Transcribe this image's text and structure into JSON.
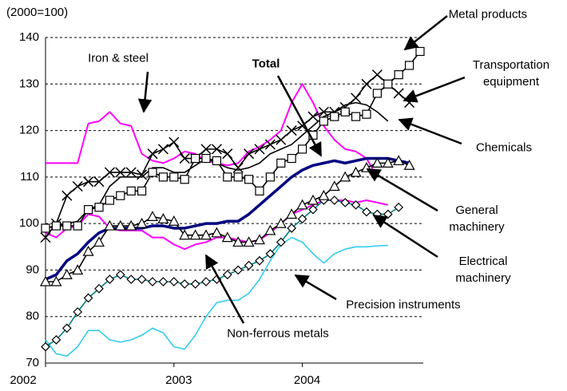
{
  "chart_data": {
    "type": "line",
    "y_label": "(2000=100)",
    "categories": [
      "2002",
      null,
      null,
      null,
      null,
      null,
      null,
      null,
      null,
      null,
      null,
      null,
      "2003",
      null,
      null,
      null,
      null,
      null,
      null,
      null,
      null,
      null,
      null,
      null,
      "2004",
      null,
      null,
      null,
      null,
      null,
      null,
      null,
      null,
      null,
      null,
      null
    ],
    "ylim": [
      70,
      140
    ],
    "yticks": [
      70,
      80,
      90,
      100,
      110,
      120,
      130,
      140
    ],
    "grid": true,
    "series": [
      {
        "name": "Metal products",
        "color": "#000000",
        "marker": "square",
        "values": [
          99,
          99.5,
          99.5,
          99.5,
          103,
          103.5,
          105,
          106,
          107,
          107,
          111,
          110,
          110,
          109.5,
          114,
          114,
          113.5,
          110,
          110,
          109.5,
          107,
          110,
          113,
          114,
          116,
          119,
          122,
          123,
          124,
          123,
          123.5,
          128,
          130,
          132,
          134,
          137
        ]
      },
      {
        "name": "Transportation equipment",
        "color": "#000000",
        "marker": "x",
        "values": [
          97,
          100,
          106,
          108,
          109,
          109,
          111,
          111,
          111,
          110.5,
          115,
          116,
          117.5,
          114,
          114,
          116,
          116,
          115,
          112,
          115,
          116,
          117,
          118,
          120,
          121,
          123,
          124,
          124,
          125,
          127,
          130,
          132,
          130,
          128,
          126,
          null
        ]
      },
      {
        "name": "Chemicals",
        "color": "#000000",
        "marker": "none",
        "values": [
          99,
          99.5,
          100,
          100.5,
          103,
          104,
          108,
          110,
          110,
          110,
          112,
          112,
          111,
          111,
          112.5,
          114,
          113,
          112,
          111.5,
          112,
          113,
          115,
          116,
          117,
          119,
          121,
          123,
          124,
          125.5,
          126,
          125.5,
          124,
          122,
          null,
          null,
          null
        ]
      },
      {
        "name": "Total",
        "color": "#000080",
        "marker": "none",
        "values": [
          88,
          89,
          92,
          93.5,
          96,
          98,
          99,
          99,
          99,
          99,
          99.5,
          99.5,
          99,
          99,
          99.5,
          100,
          100,
          100.5,
          100.5,
          102,
          104,
          106,
          108,
          110,
          111.5,
          112.5,
          113,
          113.5,
          113,
          113.5,
          114,
          114,
          114,
          113.5,
          113,
          null
        ]
      },
      {
        "name": "General machinery",
        "color": "#000000",
        "marker": "triangle",
        "values": [
          87.5,
          87.5,
          89,
          90,
          94,
          96,
          99.5,
          99.5,
          99.5,
          100,
          101.5,
          101,
          100.5,
          97.5,
          97.5,
          97.5,
          98,
          97,
          96,
          96,
          96.5,
          98.5,
          100,
          102,
          104,
          105,
          106,
          108,
          110,
          111,
          112,
          113,
          113,
          113.5,
          112.5,
          null
        ]
      },
      {
        "name": "Electrical machinery",
        "color": "#008080",
        "marker": "diamond",
        "values": [
          73.5,
          75,
          77.5,
          81,
          84,
          86,
          88,
          89,
          88,
          88,
          87.5,
          87.5,
          87.5,
          87,
          87,
          87.5,
          88,
          89,
          90,
          91,
          92,
          93.5,
          96,
          99,
          101,
          103,
          105,
          105,
          104.5,
          104,
          102.5,
          102,
          102,
          103.5,
          null,
          null
        ]
      },
      {
        "name": "Non-ferrous metals",
        "color": "#ff00ff",
        "marker": "none",
        "values": [
          98,
          97,
          99,
          99.5,
          102,
          101.5,
          99,
          98.5,
          98.5,
          98.5,
          97,
          97,
          95.5,
          94.5,
          95.5,
          96,
          97,
          97,
          96.5,
          96,
          96.5,
          98,
          100,
          102,
          103,
          104,
          105,
          105,
          105,
          104.5,
          105,
          104.5,
          104,
          null,
          null,
          null
        ]
      },
      {
        "name": "Precision instruments",
        "color": "#33ccee",
        "marker": "none",
        "values": [
          75,
          72,
          71.5,
          73.5,
          77,
          77,
          75,
          74.5,
          75,
          76,
          77.5,
          76.5,
          73.5,
          73,
          76,
          80,
          83,
          83.5,
          83.5,
          85,
          88,
          92,
          95.5,
          97,
          96,
          93.5,
          91.5,
          93.5,
          94.5,
          95,
          95,
          95.2,
          95.3,
          null,
          null,
          null
        ]
      },
      {
        "name": "Iron & steel",
        "color": "#ff00ff",
        "marker": "none",
        "values": [
          113,
          113,
          113,
          113,
          121.5,
          122,
          124,
          121.5,
          121,
          115,
          113.5,
          113,
          114,
          115.5,
          115,
          113.5,
          113,
          112.5,
          113,
          115.5,
          116.5,
          118,
          120,
          126,
          130,
          126,
          121,
          118,
          116,
          115.5,
          114,
          110,
          null,
          null,
          null,
          null
        ]
      }
    ]
  }
}
